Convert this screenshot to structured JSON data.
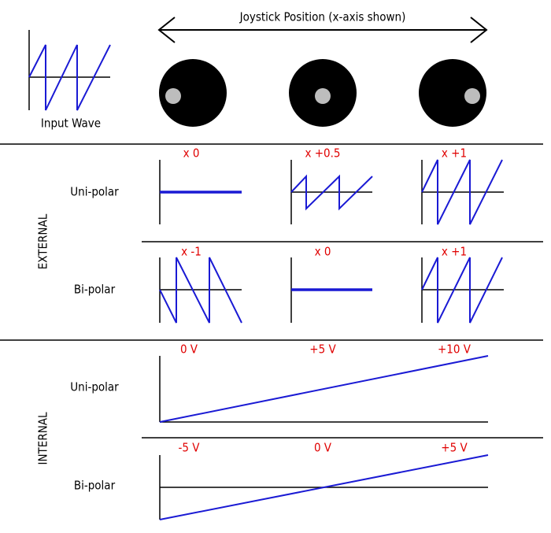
{
  "header": {
    "title": "Joystick Position (x-axis shown)",
    "input_label": "Input Wave"
  },
  "sections": [
    {
      "label": "EXTERNAL",
      "rows": [
        {
          "label": "Uni-polar",
          "levels": [
            "x 0",
            "x +0.5",
            "x +1"
          ]
        },
        {
          "label": "Bi-polar",
          "levels": [
            "x -1",
            "x 0",
            "x +1"
          ]
        }
      ]
    },
    {
      "label": "INTERNAL",
      "rows": [
        {
          "label": "Uni-polar",
          "levels": [
            "0 V",
            "+5 V",
            "+10 V"
          ]
        },
        {
          "label": "Bi-polar",
          "levels": [
            "-5 V",
            "0 V",
            "+5 V"
          ]
        }
      ]
    }
  ]
}
